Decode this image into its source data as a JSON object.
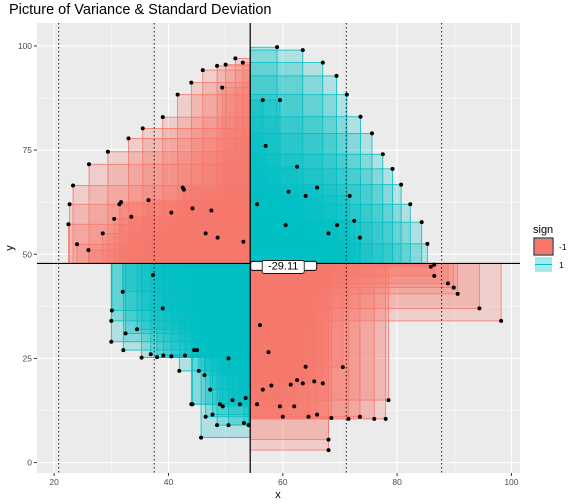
{
  "chart_data": {
    "type": "scatter",
    "title": "Picture of Variance & Standard Deviation",
    "xlabel": "x",
    "ylabel": "y",
    "xlim": [
      17,
      101.5
    ],
    "ylim": [
      -2.5,
      105.5
    ],
    "x_ticks": [
      20,
      40,
      60,
      80,
      100
    ],
    "y_ticks": [
      0,
      25,
      50,
      75,
      100
    ],
    "grid": true,
    "background": "#EBEBEB",
    "mean": {
      "x": 54.3,
      "y": 47.8
    },
    "sd_lines_x": [
      20.8,
      37.5,
      71.1,
      87.8
    ],
    "covariance_label": "-29.11",
    "legend": {
      "title": "sign",
      "position": "right",
      "entries": [
        {
          "label": "-1",
          "fill": "#F8766D"
        },
        {
          "label": "1",
          "fill": "#00BFC4"
        }
      ]
    },
    "points_above": [
      [
        22.5,
        57.2
      ],
      [
        22.7,
        62.0
      ],
      [
        23.3,
        66.5
      ],
      [
        24.0,
        52.4
      ],
      [
        26.0,
        51.0
      ],
      [
        26.1,
        71.6
      ],
      [
        28.5,
        55.0
      ],
      [
        29.4,
        74.6
      ],
      [
        30.5,
        58.5
      ],
      [
        31.4,
        62.0
      ],
      [
        31.7,
        62.5
      ],
      [
        33.0,
        77.8
      ],
      [
        33.5,
        59.0
      ],
      [
        35.5,
        80.2
      ],
      [
        36.5,
        63.0
      ],
      [
        39.0,
        82.9
      ],
      [
        40.5,
        60.0
      ],
      [
        41.6,
        88.3
      ],
      [
        42.5,
        66.0
      ],
      [
        42.7,
        65.5
      ],
      [
        44.0,
        91.2
      ],
      [
        44.2,
        61.0
      ],
      [
        46.0,
        94.2
      ],
      [
        46.5,
        55.0
      ],
      [
        47.5,
        60.5
      ],
      [
        48.5,
        95.2
      ],
      [
        48.6,
        54.0
      ],
      [
        49.4,
        90.0
      ],
      [
        50.0,
        95.5
      ],
      [
        51.7,
        97.0
      ],
      [
        53.0,
        96.0
      ],
      [
        53.1,
        53.0
      ],
      [
        55.5,
        62.0
      ],
      [
        56.5,
        87.0
      ],
      [
        57.0,
        76.0
      ],
      [
        59.0,
        99.7
      ],
      [
        59.5,
        87.0
      ],
      [
        60.5,
        57.0
      ],
      [
        61.0,
        65.0
      ],
      [
        62.5,
        71.0
      ],
      [
        63.5,
        99.0
      ],
      [
        64.0,
        64.0
      ],
      [
        66.0,
        66.0
      ],
      [
        67.0,
        96.0
      ],
      [
        68.0,
        55.0
      ],
      [
        69.4,
        92.8
      ],
      [
        69.5,
        57.0
      ],
      [
        71.2,
        88.3
      ],
      [
        71.7,
        64.0
      ],
      [
        72.5,
        58.0
      ],
      [
        73.5,
        54.0
      ],
      [
        73.6,
        83.0
      ],
      [
        75.6,
        79.0
      ],
      [
        77.5,
        74.0
      ],
      [
        79.2,
        70.5
      ],
      [
        80.7,
        66.7
      ],
      [
        82.3,
        62.0
      ],
      [
        84.3,
        57.7
      ],
      [
        85.3,
        52.5
      ],
      [
        86.5,
        47.5
      ]
    ],
    "points_below": [
      [
        85.9,
        47.0
      ],
      [
        86.5,
        44.8
      ],
      [
        88.9,
        43.0
      ],
      [
        89.9,
        42.0
      ],
      [
        90.6,
        40.5
      ],
      [
        94.4,
        37.0
      ],
      [
        98.2,
        34.0
      ],
      [
        30.1,
        36.5
      ],
      [
        30.0,
        34.0
      ],
      [
        30.0,
        29.0
      ],
      [
        32.0,
        41.0
      ],
      [
        32.5,
        31.0
      ],
      [
        32.1,
        27.0
      ],
      [
        34.5,
        32.0
      ],
      [
        35.3,
        25.2
      ],
      [
        36.9,
        26.0
      ],
      [
        37.3,
        45.0
      ],
      [
        38.0,
        25.3
      ],
      [
        39.0,
        37.0
      ],
      [
        39.1,
        25.7
      ],
      [
        40.5,
        25.5
      ],
      [
        41.9,
        22.0
      ],
      [
        42.9,
        25.7
      ],
      [
        44.0,
        14.0
      ],
      [
        44.2,
        14.0
      ],
      [
        44.5,
        27.0
      ],
      [
        45.0,
        27.0
      ],
      [
        45.3,
        22.0
      ],
      [
        45.7,
        6.0
      ],
      [
        46.3,
        21.0
      ],
      [
        46.5,
        11.0
      ],
      [
        47.3,
        17.5
      ],
      [
        47.7,
        11.5
      ],
      [
        48.5,
        9.0
      ],
      [
        49.0,
        14.0
      ],
      [
        49.5,
        13.5
      ],
      [
        50.5,
        25.0
      ],
      [
        50.5,
        9.0
      ],
      [
        51.2,
        15.0
      ],
      [
        52.5,
        14.0
      ],
      [
        53.2,
        9.5
      ],
      [
        53.5,
        15.5
      ],
      [
        54.0,
        9.0
      ],
      [
        55.5,
        14.0
      ],
      [
        56.0,
        33.0
      ],
      [
        56.5,
        17.5
      ],
      [
        57.5,
        26.5
      ],
      [
        58.0,
        18.5
      ],
      [
        59.5,
        13.5
      ],
      [
        60.0,
        11.0
      ],
      [
        61.4,
        18.7
      ],
      [
        62.0,
        13.5
      ],
      [
        62.5,
        19.8
      ],
      [
        63.5,
        19.0
      ],
      [
        64.0,
        23.0
      ],
      [
        64.5,
        11.0
      ],
      [
        65.5,
        19.5
      ],
      [
        66.0,
        11.5
      ],
      [
        67.0,
        19.0
      ],
      [
        68.0,
        3.0
      ],
      [
        68.0,
        5.5
      ],
      [
        68.5,
        10.7
      ],
      [
        70.5,
        22.9
      ],
      [
        71.5,
        10.5
      ],
      [
        73.5,
        11.0
      ],
      [
        76.0,
        10.5
      ],
      [
        78.0,
        10.5
      ],
      [
        78.5,
        15.0
      ]
    ]
  }
}
